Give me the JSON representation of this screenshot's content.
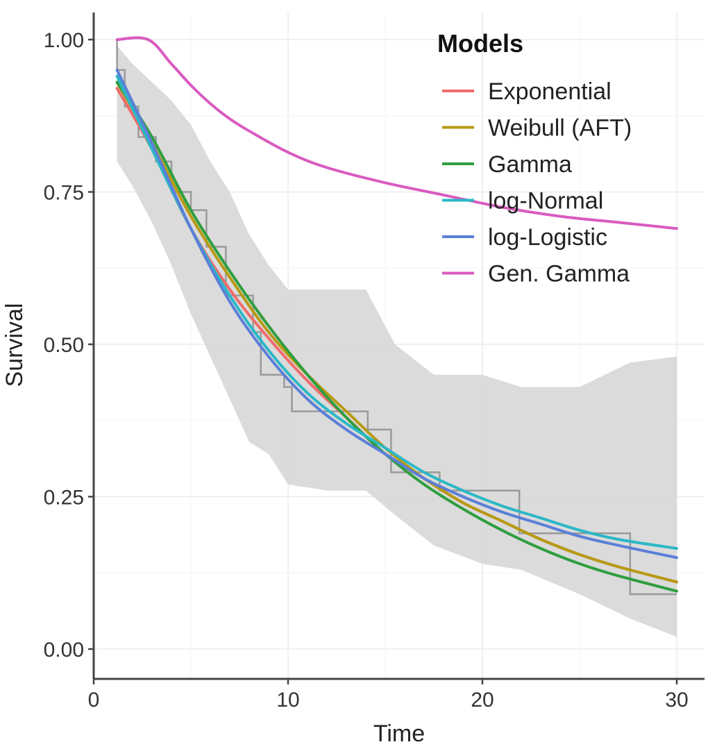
{
  "chart_data": {
    "type": "line",
    "title": "",
    "xlabel": "Time",
    "ylabel": "Survival",
    "xlim": [
      0,
      30
    ],
    "ylim": [
      0,
      1
    ],
    "x_ticks": [
      0,
      10,
      20,
      30
    ],
    "x_tick_labels": [
      "0",
      "10",
      "20",
      "30"
    ],
    "y_ticks": [
      0,
      0.25,
      0.5,
      0.75,
      1.0
    ],
    "y_tick_labels": [
      "0.00",
      "0.25",
      "0.50",
      "0.75",
      "1.00"
    ],
    "grid": true,
    "legend": {
      "title": "Models",
      "position": "top-right",
      "entries": [
        "Exponential",
        "Weibull (AFT)",
        "Gamma",
        "log-Normal",
        "log-Logistic",
        "Gen. Gamma"
      ]
    },
    "kaplan_meier": {
      "color": "#9a9a9a",
      "confidence_band_color": "#d9d9d9",
      "step_times": [
        1.2,
        1.6,
        2.3,
        3.2,
        4.0,
        5.0,
        5.8,
        6.8,
        8.2,
        8.6,
        9.8,
        10.2,
        14.1,
        15.3,
        17.8,
        21.9,
        27.6,
        30.0
      ],
      "step_values": [
        0.95,
        0.89,
        0.84,
        0.8,
        0.75,
        0.72,
        0.66,
        0.58,
        0.52,
        0.45,
        0.43,
        0.39,
        0.36,
        0.29,
        0.26,
        0.19,
        0.09,
        0.09
      ],
      "band_times": [
        1.2,
        2.0,
        3.0,
        4.0,
        5.0,
        6.0,
        7.0,
        8.0,
        9.0,
        10.0,
        12.0,
        14.0,
        15.5,
        17.5,
        20.0,
        22.0,
        25.0,
        27.6,
        30.0
      ],
      "band_upper": [
        0.99,
        0.96,
        0.93,
        0.9,
        0.86,
        0.8,
        0.75,
        0.68,
        0.63,
        0.59,
        0.59,
        0.59,
        0.5,
        0.45,
        0.45,
        0.43,
        0.43,
        0.47,
        0.48
      ],
      "band_lower": [
        0.8,
        0.76,
        0.7,
        0.63,
        0.55,
        0.48,
        0.41,
        0.34,
        0.32,
        0.27,
        0.26,
        0.26,
        0.22,
        0.17,
        0.14,
        0.13,
        0.09,
        0.05,
        0.02
      ]
    },
    "series": [
      {
        "name": "Exponential",
        "color": "#f06b6b",
        "x": [
          1.2,
          3,
          5,
          7,
          9,
          11,
          13,
          15,
          17,
          19,
          21,
          23,
          25,
          27,
          30
        ],
        "y": [
          0.92,
          0.82,
          0.69,
          0.59,
          0.51,
          0.44,
          0.38,
          0.32,
          0.28,
          0.24,
          0.21,
          0.18,
          0.155,
          0.135,
          0.11
        ]
      },
      {
        "name": "Weibull (AFT)",
        "color": "#b79a12",
        "x": [
          1.2,
          3,
          5,
          7,
          9,
          11,
          13,
          15,
          17,
          19,
          21,
          23,
          25,
          27,
          30
        ],
        "y": [
          0.93,
          0.83,
          0.71,
          0.61,
          0.52,
          0.45,
          0.39,
          0.33,
          0.28,
          0.24,
          0.21,
          0.18,
          0.155,
          0.135,
          0.11
        ]
      },
      {
        "name": "Gamma",
        "color": "#2f9e3f",
        "x": [
          1.2,
          3,
          5,
          7,
          9,
          11,
          13,
          15,
          17,
          19,
          21,
          23,
          25,
          27,
          30
        ],
        "y": [
          0.93,
          0.84,
          0.72,
          0.62,
          0.53,
          0.45,
          0.38,
          0.32,
          0.27,
          0.23,
          0.195,
          0.165,
          0.14,
          0.12,
          0.095
        ]
      },
      {
        "name": "log-Normal",
        "color": "#2ab8c6",
        "x": [
          1.2,
          3,
          5,
          7,
          9,
          11,
          13,
          15,
          17,
          19,
          21,
          23,
          25,
          27,
          30
        ],
        "y": [
          0.94,
          0.82,
          0.69,
          0.58,
          0.49,
          0.42,
          0.37,
          0.33,
          0.29,
          0.26,
          0.235,
          0.215,
          0.195,
          0.18,
          0.165
        ]
      },
      {
        "name": "log-Logistic",
        "color": "#5a7fd8",
        "x": [
          1.2,
          3,
          5,
          7,
          9,
          11,
          13,
          15,
          17,
          19,
          21,
          23,
          25,
          27,
          30
        ],
        "y": [
          0.95,
          0.83,
          0.69,
          0.57,
          0.48,
          0.41,
          0.36,
          0.32,
          0.28,
          0.25,
          0.225,
          0.205,
          0.185,
          0.17,
          0.15
        ]
      },
      {
        "name": "Gen. Gamma",
        "color": "#d95bc0",
        "x": [
          1.2,
          2.8,
          4,
          5,
          6,
          7,
          8,
          10,
          12,
          15,
          18,
          21,
          24,
          27,
          30
        ],
        "y": [
          1.0,
          1.0,
          0.96,
          0.925,
          0.895,
          0.87,
          0.85,
          0.815,
          0.79,
          0.765,
          0.745,
          0.725,
          0.71,
          0.7,
          0.69
        ]
      }
    ]
  }
}
